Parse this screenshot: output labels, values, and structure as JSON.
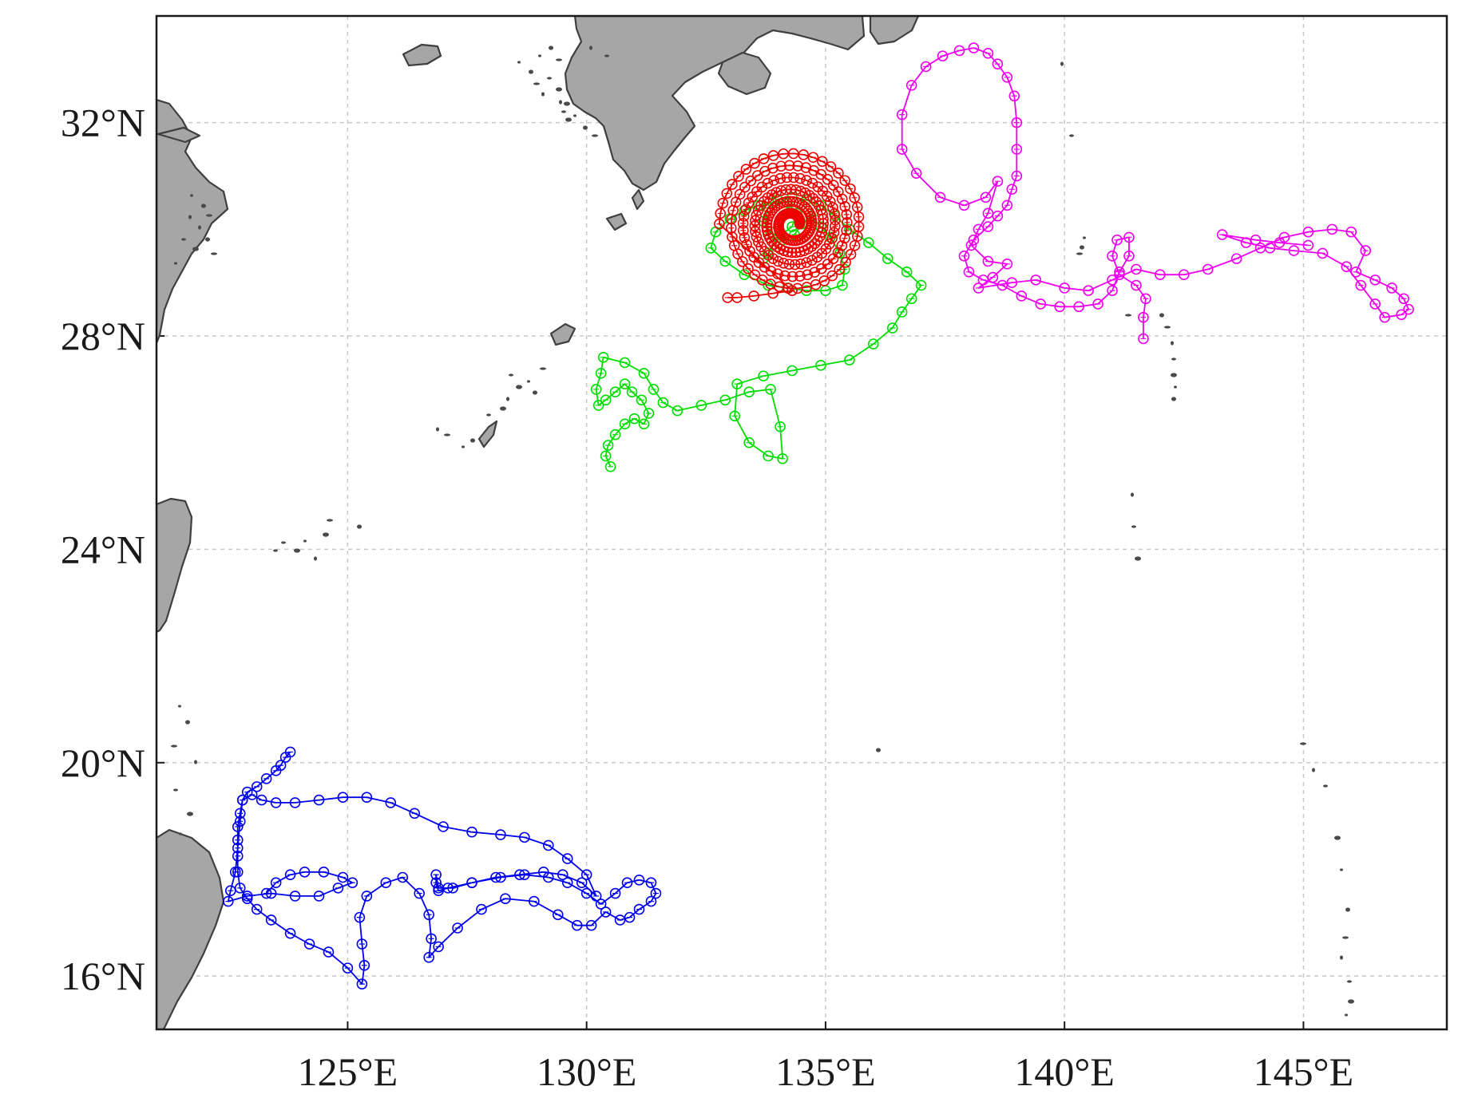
{
  "map": {
    "x_range": [
      121.0,
      148.0
    ],
    "y_range": [
      15.0,
      34.0
    ],
    "x_ticks": [
      {
        "value": 125,
        "label": "125°E"
      },
      {
        "value": 130,
        "label": "130°E"
      },
      {
        "value": 135,
        "label": "135°E"
      },
      {
        "value": 140,
        "label": "140°E"
      },
      {
        "value": 145,
        "label": "145°E"
      }
    ],
    "y_ticks": [
      {
        "value": 16,
        "label": "16°N"
      },
      {
        "value": 20,
        "label": "20°N"
      },
      {
        "value": 24,
        "label": "24°N"
      },
      {
        "value": 28,
        "label": "28°N"
      },
      {
        "value": 32,
        "label": "32°N"
      }
    ],
    "grid": true,
    "land_color": "#a6a6a6",
    "coast_color": "#3f3f3f"
  },
  "chart_data": {
    "type": "line",
    "series": [
      {
        "color": "#0000ee",
        "points": [
          [
            123.8,
            20.2
          ],
          [
            123.7,
            20.1
          ],
          [
            123.6,
            19.95
          ],
          [
            123.5,
            19.85
          ],
          [
            123.3,
            19.7
          ],
          [
            123.1,
            19.55
          ],
          [
            122.9,
            19.45
          ],
          [
            122.8,
            19.3
          ],
          [
            122.75,
            19.05
          ],
          [
            122.7,
            18.8
          ],
          [
            122.7,
            18.55
          ],
          [
            122.7,
            18.25
          ],
          [
            122.7,
            17.95
          ],
          [
            122.75,
            17.65
          ],
          [
            122.9,
            17.45
          ],
          [
            123.1,
            17.25
          ],
          [
            123.4,
            17.05
          ],
          [
            123.8,
            16.8
          ],
          [
            124.2,
            16.6
          ],
          [
            124.6,
            16.45
          ],
          [
            125.0,
            16.15
          ],
          [
            125.3,
            15.85
          ],
          [
            125.35,
            16.2
          ],
          [
            125.3,
            16.6
          ],
          [
            125.25,
            17.1
          ],
          [
            125.4,
            17.5
          ],
          [
            125.8,
            17.75
          ],
          [
            126.15,
            17.85
          ],
          [
            126.5,
            17.55
          ],
          [
            126.7,
            17.15
          ],
          [
            126.75,
            16.7
          ],
          [
            126.7,
            16.35
          ],
          [
            126.9,
            16.55
          ],
          [
            127.3,
            16.9
          ],
          [
            127.8,
            17.25
          ],
          [
            128.3,
            17.45
          ],
          [
            128.9,
            17.4
          ],
          [
            129.4,
            17.15
          ],
          [
            129.8,
            16.95
          ],
          [
            130.1,
            16.95
          ],
          [
            130.4,
            17.2
          ],
          [
            130.7,
            17.05
          ],
          [
            130.9,
            17.1
          ],
          [
            131.1,
            17.25
          ],
          [
            131.35,
            17.4
          ],
          [
            131.45,
            17.55
          ],
          [
            131.35,
            17.75
          ],
          [
            131.1,
            17.8
          ],
          [
            130.85,
            17.75
          ],
          [
            130.6,
            17.55
          ],
          [
            130.3,
            17.35
          ],
          [
            130.0,
            17.55
          ],
          [
            129.6,
            17.75
          ],
          [
            129.2,
            17.85
          ],
          [
            128.7,
            17.9
          ],
          [
            128.2,
            17.85
          ],
          [
            127.6,
            17.75
          ],
          [
            127.1,
            17.65
          ],
          [
            126.9,
            17.6
          ],
          [
            126.85,
            17.75
          ],
          [
            126.85,
            17.9
          ],
          [
            126.9,
            17.65
          ],
          [
            127.2,
            17.65
          ],
          [
            127.6,
            17.75
          ],
          [
            128.1,
            17.85
          ],
          [
            128.6,
            17.9
          ],
          [
            129.1,
            17.95
          ],
          [
            129.5,
            17.9
          ],
          [
            129.9,
            17.75
          ],
          [
            130.2,
            17.5
          ],
          [
            130.0,
            17.9
          ],
          [
            129.6,
            18.2
          ],
          [
            129.2,
            18.45
          ],
          [
            128.7,
            18.6
          ],
          [
            128.2,
            18.65
          ],
          [
            127.6,
            18.7
          ],
          [
            127.0,
            18.8
          ],
          [
            126.4,
            19.05
          ],
          [
            125.9,
            19.25
          ],
          [
            125.4,
            19.35
          ],
          [
            124.9,
            19.35
          ],
          [
            124.4,
            19.3
          ],
          [
            123.9,
            19.25
          ],
          [
            123.5,
            19.25
          ],
          [
            123.2,
            19.3
          ],
          [
            123.0,
            19.4
          ],
          [
            122.8,
            19.3
          ],
          [
            122.75,
            18.9
          ],
          [
            122.7,
            18.4
          ],
          [
            122.65,
            17.95
          ],
          [
            122.55,
            17.6
          ],
          [
            122.5,
            17.4
          ],
          [
            122.9,
            17.5
          ],
          [
            123.4,
            17.55
          ],
          [
            123.9,
            17.5
          ],
          [
            124.4,
            17.5
          ],
          [
            124.8,
            17.65
          ],
          [
            125.1,
            17.75
          ],
          [
            124.9,
            17.85
          ],
          [
            124.5,
            17.95
          ],
          [
            124.1,
            17.95
          ],
          [
            123.8,
            17.9
          ],
          [
            123.5,
            17.75
          ],
          [
            123.3,
            17.55
          ]
        ]
      },
      {
        "color": "#00dd00",
        "points": [
          [
            130.5,
            25.55
          ],
          [
            130.4,
            25.75
          ],
          [
            130.45,
            25.95
          ],
          [
            130.6,
            26.15
          ],
          [
            130.8,
            26.35
          ],
          [
            131.0,
            26.45
          ],
          [
            131.2,
            26.35
          ],
          [
            131.3,
            26.55
          ],
          [
            131.15,
            26.8
          ],
          [
            130.95,
            26.95
          ],
          [
            130.8,
            27.1
          ],
          [
            130.6,
            26.95
          ],
          [
            130.4,
            26.8
          ],
          [
            130.25,
            26.7
          ],
          [
            130.2,
            27.0
          ],
          [
            130.3,
            27.3
          ],
          [
            130.35,
            27.6
          ],
          [
            130.8,
            27.5
          ],
          [
            131.2,
            27.3
          ],
          [
            131.4,
            27.0
          ],
          [
            131.6,
            26.75
          ],
          [
            131.9,
            26.6
          ],
          [
            132.4,
            26.7
          ],
          [
            132.9,
            26.8
          ],
          [
            133.4,
            26.95
          ],
          [
            133.85,
            27.0
          ],
          [
            134.05,
            26.3
          ],
          [
            134.1,
            25.7
          ],
          [
            133.8,
            25.75
          ],
          [
            133.4,
            26.0
          ],
          [
            133.1,
            26.5
          ],
          [
            133.15,
            27.1
          ],
          [
            133.7,
            27.25
          ],
          [
            134.3,
            27.35
          ],
          [
            134.9,
            27.45
          ],
          [
            135.5,
            27.55
          ],
          [
            136.0,
            27.85
          ],
          [
            136.4,
            28.15
          ],
          [
            136.6,
            28.45
          ],
          [
            136.8,
            28.7
          ],
          [
            137.0,
            28.95
          ],
          [
            136.7,
            29.2
          ],
          [
            136.3,
            29.45
          ],
          [
            135.9,
            29.75
          ],
          [
            135.5,
            30.0
          ],
          [
            135.2,
            30.25
          ],
          [
            134.9,
            30.45
          ],
          [
            134.6,
            30.55
          ],
          [
            134.3,
            30.6
          ],
          [
            134.0,
            30.55
          ],
          [
            133.8,
            30.4
          ],
          [
            133.7,
            30.15
          ],
          [
            133.85,
            29.95
          ],
          [
            134.1,
            29.8
          ],
          [
            134.35,
            29.9
          ],
          [
            134.5,
            30.1
          ],
          [
            134.7,
            30.25
          ],
          [
            134.9,
            30.05
          ],
          [
            135.1,
            29.85
          ],
          [
            135.3,
            29.55
          ],
          [
            135.4,
            29.25
          ],
          [
            135.35,
            28.95
          ],
          [
            135.0,
            28.85
          ],
          [
            134.6,
            28.85
          ],
          [
            134.2,
            28.9
          ],
          [
            133.8,
            28.95
          ],
          [
            133.3,
            29.15
          ],
          [
            132.9,
            29.4
          ],
          [
            132.6,
            29.65
          ],
          [
            132.7,
            29.95
          ],
          [
            133.0,
            30.2
          ],
          [
            133.3,
            30.35
          ],
          [
            133.6,
            30.45
          ],
          [
            133.9,
            30.5
          ],
          [
            134.2,
            30.5
          ],
          [
            134.4,
            30.3
          ],
          [
            134.3,
            30.05
          ],
          [
            134.0,
            29.85
          ],
          [
            133.8,
            29.55
          ],
          [
            133.7,
            29.45
          ]
        ]
      },
      {
        "color": "#ee0000",
        "spiral": {
          "center": [
            134.3,
            30.1
          ],
          "r_start": 0.15,
          "r_end": 1.45,
          "turns": 5.5,
          "count": 240
        },
        "tail": [
          [
            134.3,
            28.85
          ],
          [
            133.9,
            28.8
          ],
          [
            133.5,
            28.75
          ],
          [
            133.15,
            28.72
          ],
          [
            132.95,
            28.72
          ]
        ]
      },
      {
        "color": "#ee00ee",
        "points": [
          [
            141.65,
            27.95
          ],
          [
            141.65,
            28.35
          ],
          [
            141.7,
            28.7
          ],
          [
            141.5,
            28.95
          ],
          [
            141.15,
            29.15
          ],
          [
            141.0,
            29.5
          ],
          [
            141.1,
            29.8
          ],
          [
            141.35,
            29.85
          ],
          [
            141.35,
            29.5
          ],
          [
            141.15,
            29.2
          ],
          [
            141.0,
            28.85
          ],
          [
            140.7,
            28.6
          ],
          [
            140.3,
            28.55
          ],
          [
            139.9,
            28.55
          ],
          [
            139.5,
            28.6
          ],
          [
            139.1,
            28.75
          ],
          [
            138.7,
            28.95
          ],
          [
            138.3,
            29.05
          ],
          [
            138.0,
            29.2
          ],
          [
            137.9,
            29.5
          ],
          [
            138.1,
            29.8
          ],
          [
            138.4,
            30.05
          ],
          [
            138.6,
            30.25
          ],
          [
            138.8,
            30.45
          ],
          [
            138.9,
            30.75
          ],
          [
            139.0,
            31.0
          ],
          [
            139.0,
            31.5
          ],
          [
            139.0,
            32.0
          ],
          [
            138.95,
            32.5
          ],
          [
            138.8,
            32.85
          ],
          [
            138.6,
            33.1
          ],
          [
            138.4,
            33.3
          ],
          [
            138.1,
            33.4
          ],
          [
            137.8,
            33.35
          ],
          [
            137.45,
            33.25
          ],
          [
            137.1,
            33.05
          ],
          [
            136.8,
            32.7
          ],
          [
            136.6,
            32.15
          ],
          [
            136.6,
            31.5
          ],
          [
            136.9,
            31.05
          ],
          [
            137.4,
            30.6
          ],
          [
            137.9,
            30.45
          ],
          [
            138.35,
            30.6
          ],
          [
            138.6,
            30.9
          ],
          [
            138.4,
            30.3
          ],
          [
            138.2,
            30.0
          ],
          [
            138.05,
            29.7
          ],
          [
            138.4,
            29.4
          ],
          [
            138.8,
            29.35
          ],
          [
            138.5,
            29.1
          ],
          [
            138.2,
            28.9
          ],
          [
            138.9,
            29.0
          ],
          [
            139.4,
            29.05
          ],
          [
            140.0,
            28.9
          ],
          [
            140.5,
            28.85
          ],
          [
            141.0,
            29.05
          ],
          [
            141.5,
            29.25
          ],
          [
            142.0,
            29.15
          ],
          [
            142.5,
            29.15
          ],
          [
            143.0,
            29.25
          ],
          [
            143.6,
            29.45
          ],
          [
            144.1,
            29.65
          ],
          [
            144.6,
            29.85
          ],
          [
            145.1,
            29.95
          ],
          [
            145.6,
            30.0
          ],
          [
            146.0,
            29.95
          ],
          [
            146.3,
            29.6
          ],
          [
            146.1,
            29.2
          ],
          [
            146.5,
            29.05
          ],
          [
            146.85,
            28.9
          ],
          [
            147.1,
            28.7
          ],
          [
            147.2,
            28.5
          ],
          [
            147.05,
            28.4
          ],
          [
            146.7,
            28.35
          ],
          [
            146.5,
            28.6
          ],
          [
            146.2,
            28.95
          ],
          [
            145.9,
            29.3
          ],
          [
            145.4,
            29.55
          ],
          [
            144.8,
            29.6
          ],
          [
            144.3,
            29.65
          ],
          [
            143.8,
            29.75
          ],
          [
            143.3,
            29.9
          ],
          [
            144.0,
            29.8
          ],
          [
            144.5,
            29.75
          ],
          [
            145.1,
            29.7
          ]
        ]
      }
    ]
  }
}
